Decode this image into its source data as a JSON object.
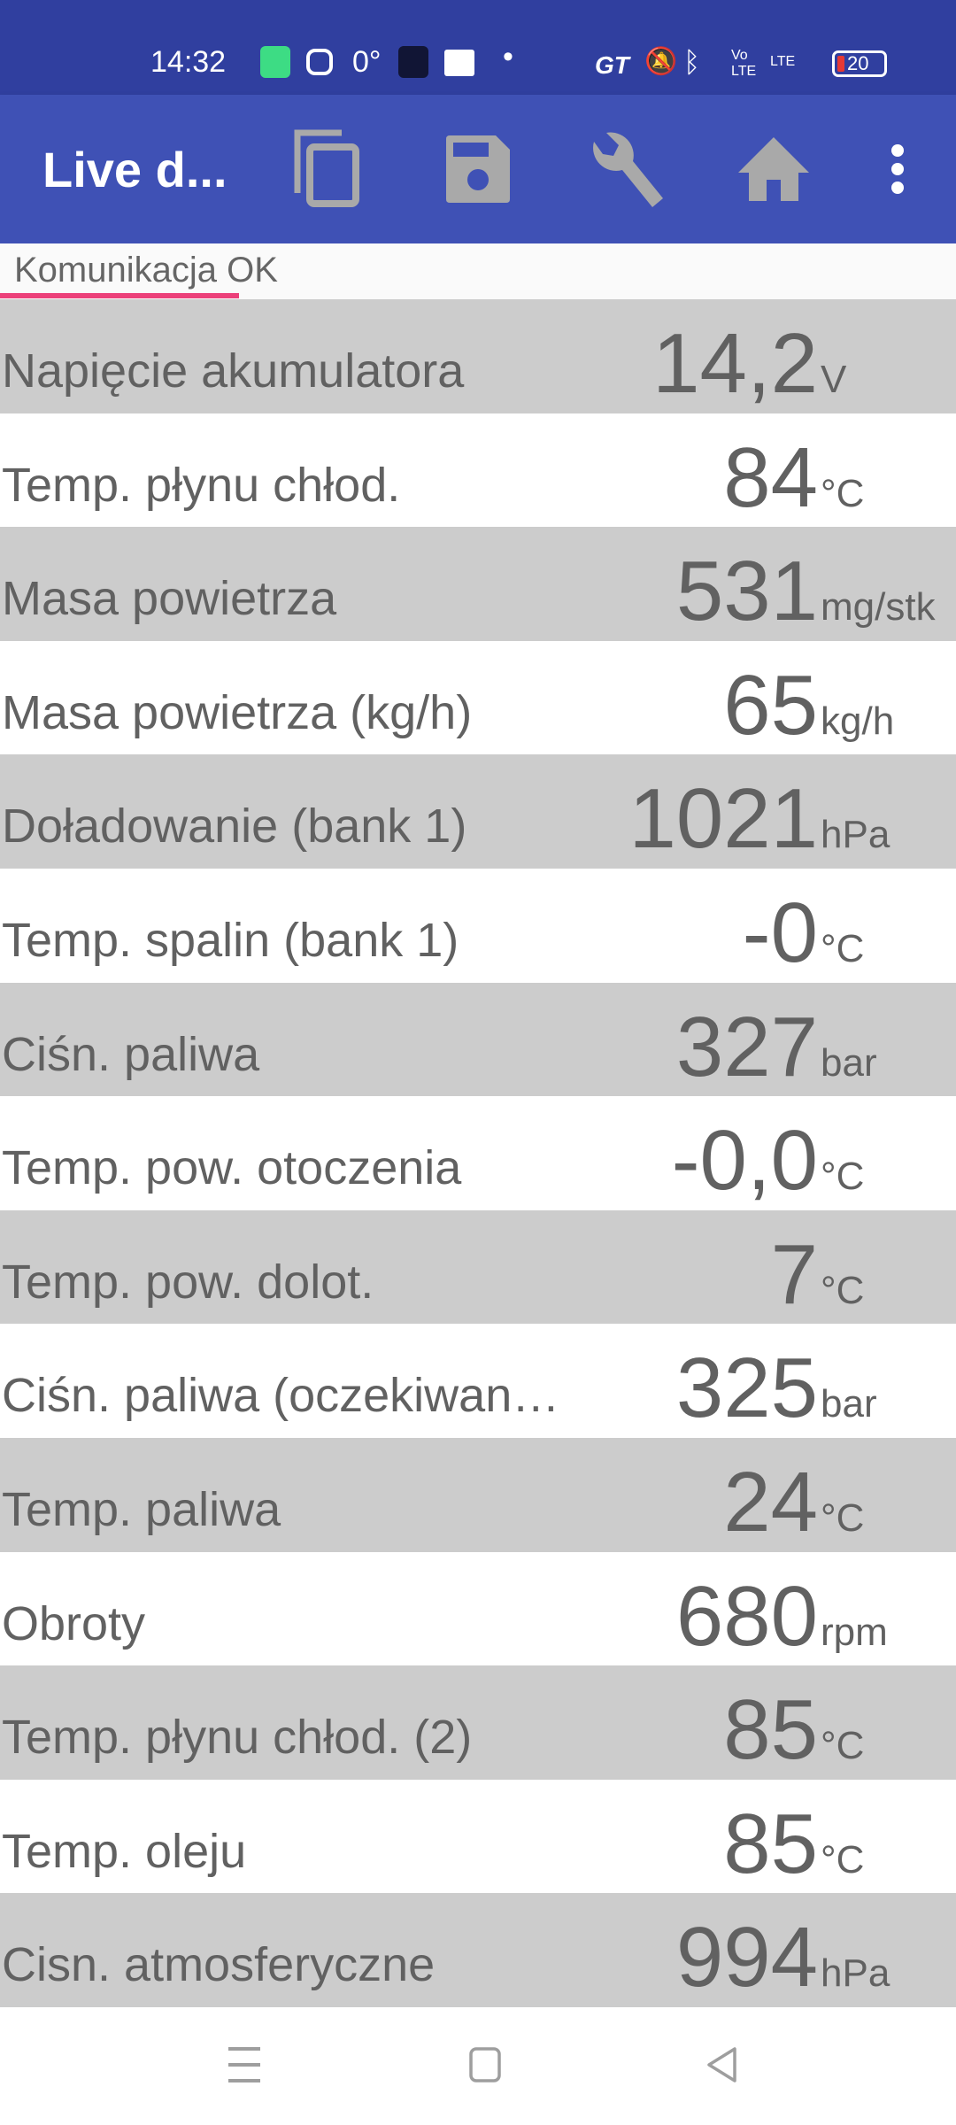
{
  "status_bar": {
    "time": "14:32",
    "temperature": "0°",
    "battery_level": "20",
    "network_label": "LTE",
    "volte_label": "Vo LTE",
    "gt_label": "GT",
    "icons": [
      "battery-saver-icon",
      "instagram-icon",
      "app-icon",
      "gmail-icon",
      "dot-icon",
      "gt-icon",
      "bell-off-icon",
      "bluetooth-icon",
      "volte-icon",
      "signal-icon",
      "battery-icon"
    ]
  },
  "app_bar": {
    "title": "Live d...",
    "actions": [
      "copy-icon",
      "save-icon",
      "wrench-icon",
      "home-icon",
      "more-vert-icon"
    ]
  },
  "tab": {
    "label": "Komunikacja OK",
    "indicator_color": "#ec407a"
  },
  "colors": {
    "status_bar": "#303f9f",
    "app_bar": "#3f51b5",
    "row_alt": "#cccccc",
    "text": "#616161"
  },
  "rows": [
    {
      "label": "Napięcie akumulatora",
      "value": "14,2",
      "unit": "V"
    },
    {
      "label": "Temp. płynu chłod.",
      "value": "84",
      "unit": "°C"
    },
    {
      "label": "Masa powietrza",
      "value": "531",
      "unit": "mg/stk"
    },
    {
      "label": "Masa powietrza (kg/h)",
      "value": "65",
      "unit": "kg/h"
    },
    {
      "label": "Doładowanie (bank 1)",
      "value": "1021",
      "unit": "hPa"
    },
    {
      "label": "Temp. spalin (bank 1)",
      "value": "-0",
      "unit": "°C"
    },
    {
      "label": "Ciśn. paliwa",
      "value": "327",
      "unit": "bar"
    },
    {
      "label": "Temp. pow. otoczenia",
      "value": "-0,0",
      "unit": "°C"
    },
    {
      "label": "Temp. pow. dolot.",
      "value": "7",
      "unit": "°C"
    },
    {
      "label": "Ciśn. paliwa (oczekiwan…",
      "value": "325",
      "unit": "bar"
    },
    {
      "label": "Temp. paliwa",
      "value": "24",
      "unit": "°C"
    },
    {
      "label": "Obroty",
      "value": "680",
      "unit": "rpm"
    },
    {
      "label": "Temp. płynu chłod. (2)",
      "value": "85",
      "unit": "°C"
    },
    {
      "label": "Temp. oleju",
      "value": "85",
      "unit": "°C"
    },
    {
      "label": "Cisn. atmosferyczne",
      "value": "994",
      "unit": "hPa"
    }
  ],
  "nav_bar": [
    "recents-icon",
    "home-nav-icon",
    "back-icon"
  ]
}
